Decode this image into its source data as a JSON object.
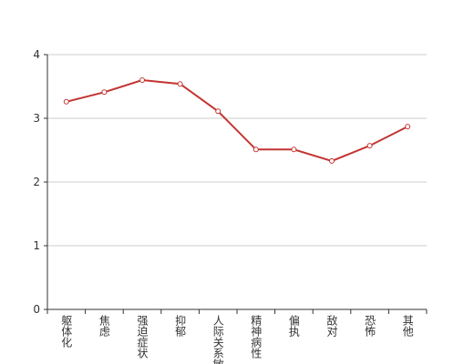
{
  "chart_data": {
    "type": "line",
    "categories": [
      "躯体化",
      "焦虑",
      "强迫症状",
      "抑郁",
      "人际关系敏感",
      "精神病性",
      "偏执",
      "敌对",
      "恐怖",
      "其他"
    ],
    "values": [
      3.26,
      3.41,
      3.6,
      3.54,
      3.11,
      2.51,
      2.51,
      2.33,
      2.57,
      2.87
    ],
    "color": "#c23531",
    "ylim": [
      0,
      4
    ],
    "yticks": [
      0,
      1,
      2,
      3,
      4
    ],
    "grid": true
  }
}
